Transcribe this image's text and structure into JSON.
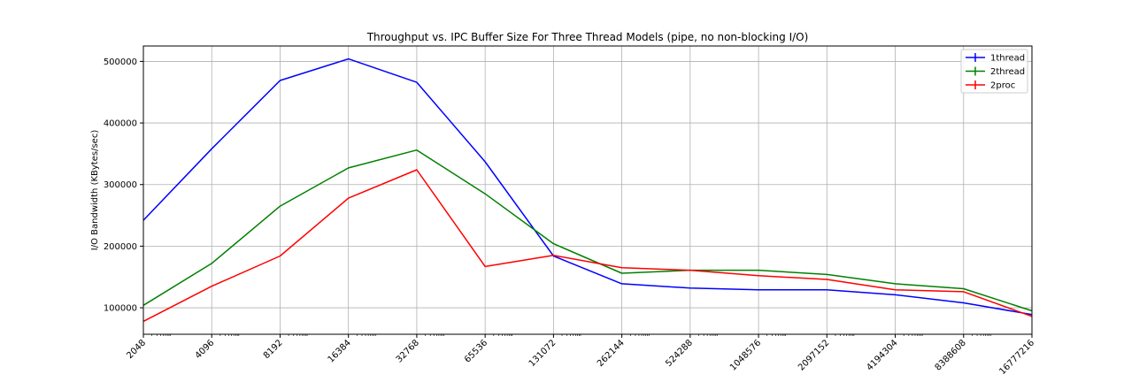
{
  "chart_data": {
    "type": "line",
    "title": "Throughput vs. IPC Buffer Size For Three Thread Models (pipe, no non-blocking I/O)",
    "xlabel": "",
    "ylabel": "I/O Bandwidth (KBytes/sec)",
    "x_scale": "log2",
    "x": [
      "2048",
      "4096",
      "8192",
      "16384",
      "32768",
      "65536",
      "131072",
      "262144",
      "524288",
      "1048576",
      "2097152",
      "4194304",
      "8388608",
      "16777216"
    ],
    "ylim": [
      57000,
      525000
    ],
    "yticks": [
      "100000",
      "200000",
      "300000",
      "400000",
      "500000"
    ],
    "grid": true,
    "legend_position": "top-right",
    "series": [
      {
        "name": "1thread",
        "color": "#0000ff",
        "values": [
          242000,
          358000,
          469000,
          504000,
          466000,
          337000,
          184000,
          139000,
          132000,
          129000,
          129000,
          121000,
          108000,
          89000
        ]
      },
      {
        "name": "2thread",
        "color": "#008000",
        "values": [
          104000,
          172000,
          265000,
          327000,
          356000,
          285000,
          204000,
          156000,
          161000,
          161000,
          154000,
          139000,
          131000,
          95000
        ]
      },
      {
        "name": "2proc",
        "color": "#ff0000",
        "values": [
          78000,
          135000,
          184000,
          278000,
          324000,
          167000,
          185000,
          165000,
          161000,
          152000,
          146000,
          129000,
          126000,
          86000
        ]
      }
    ]
  }
}
